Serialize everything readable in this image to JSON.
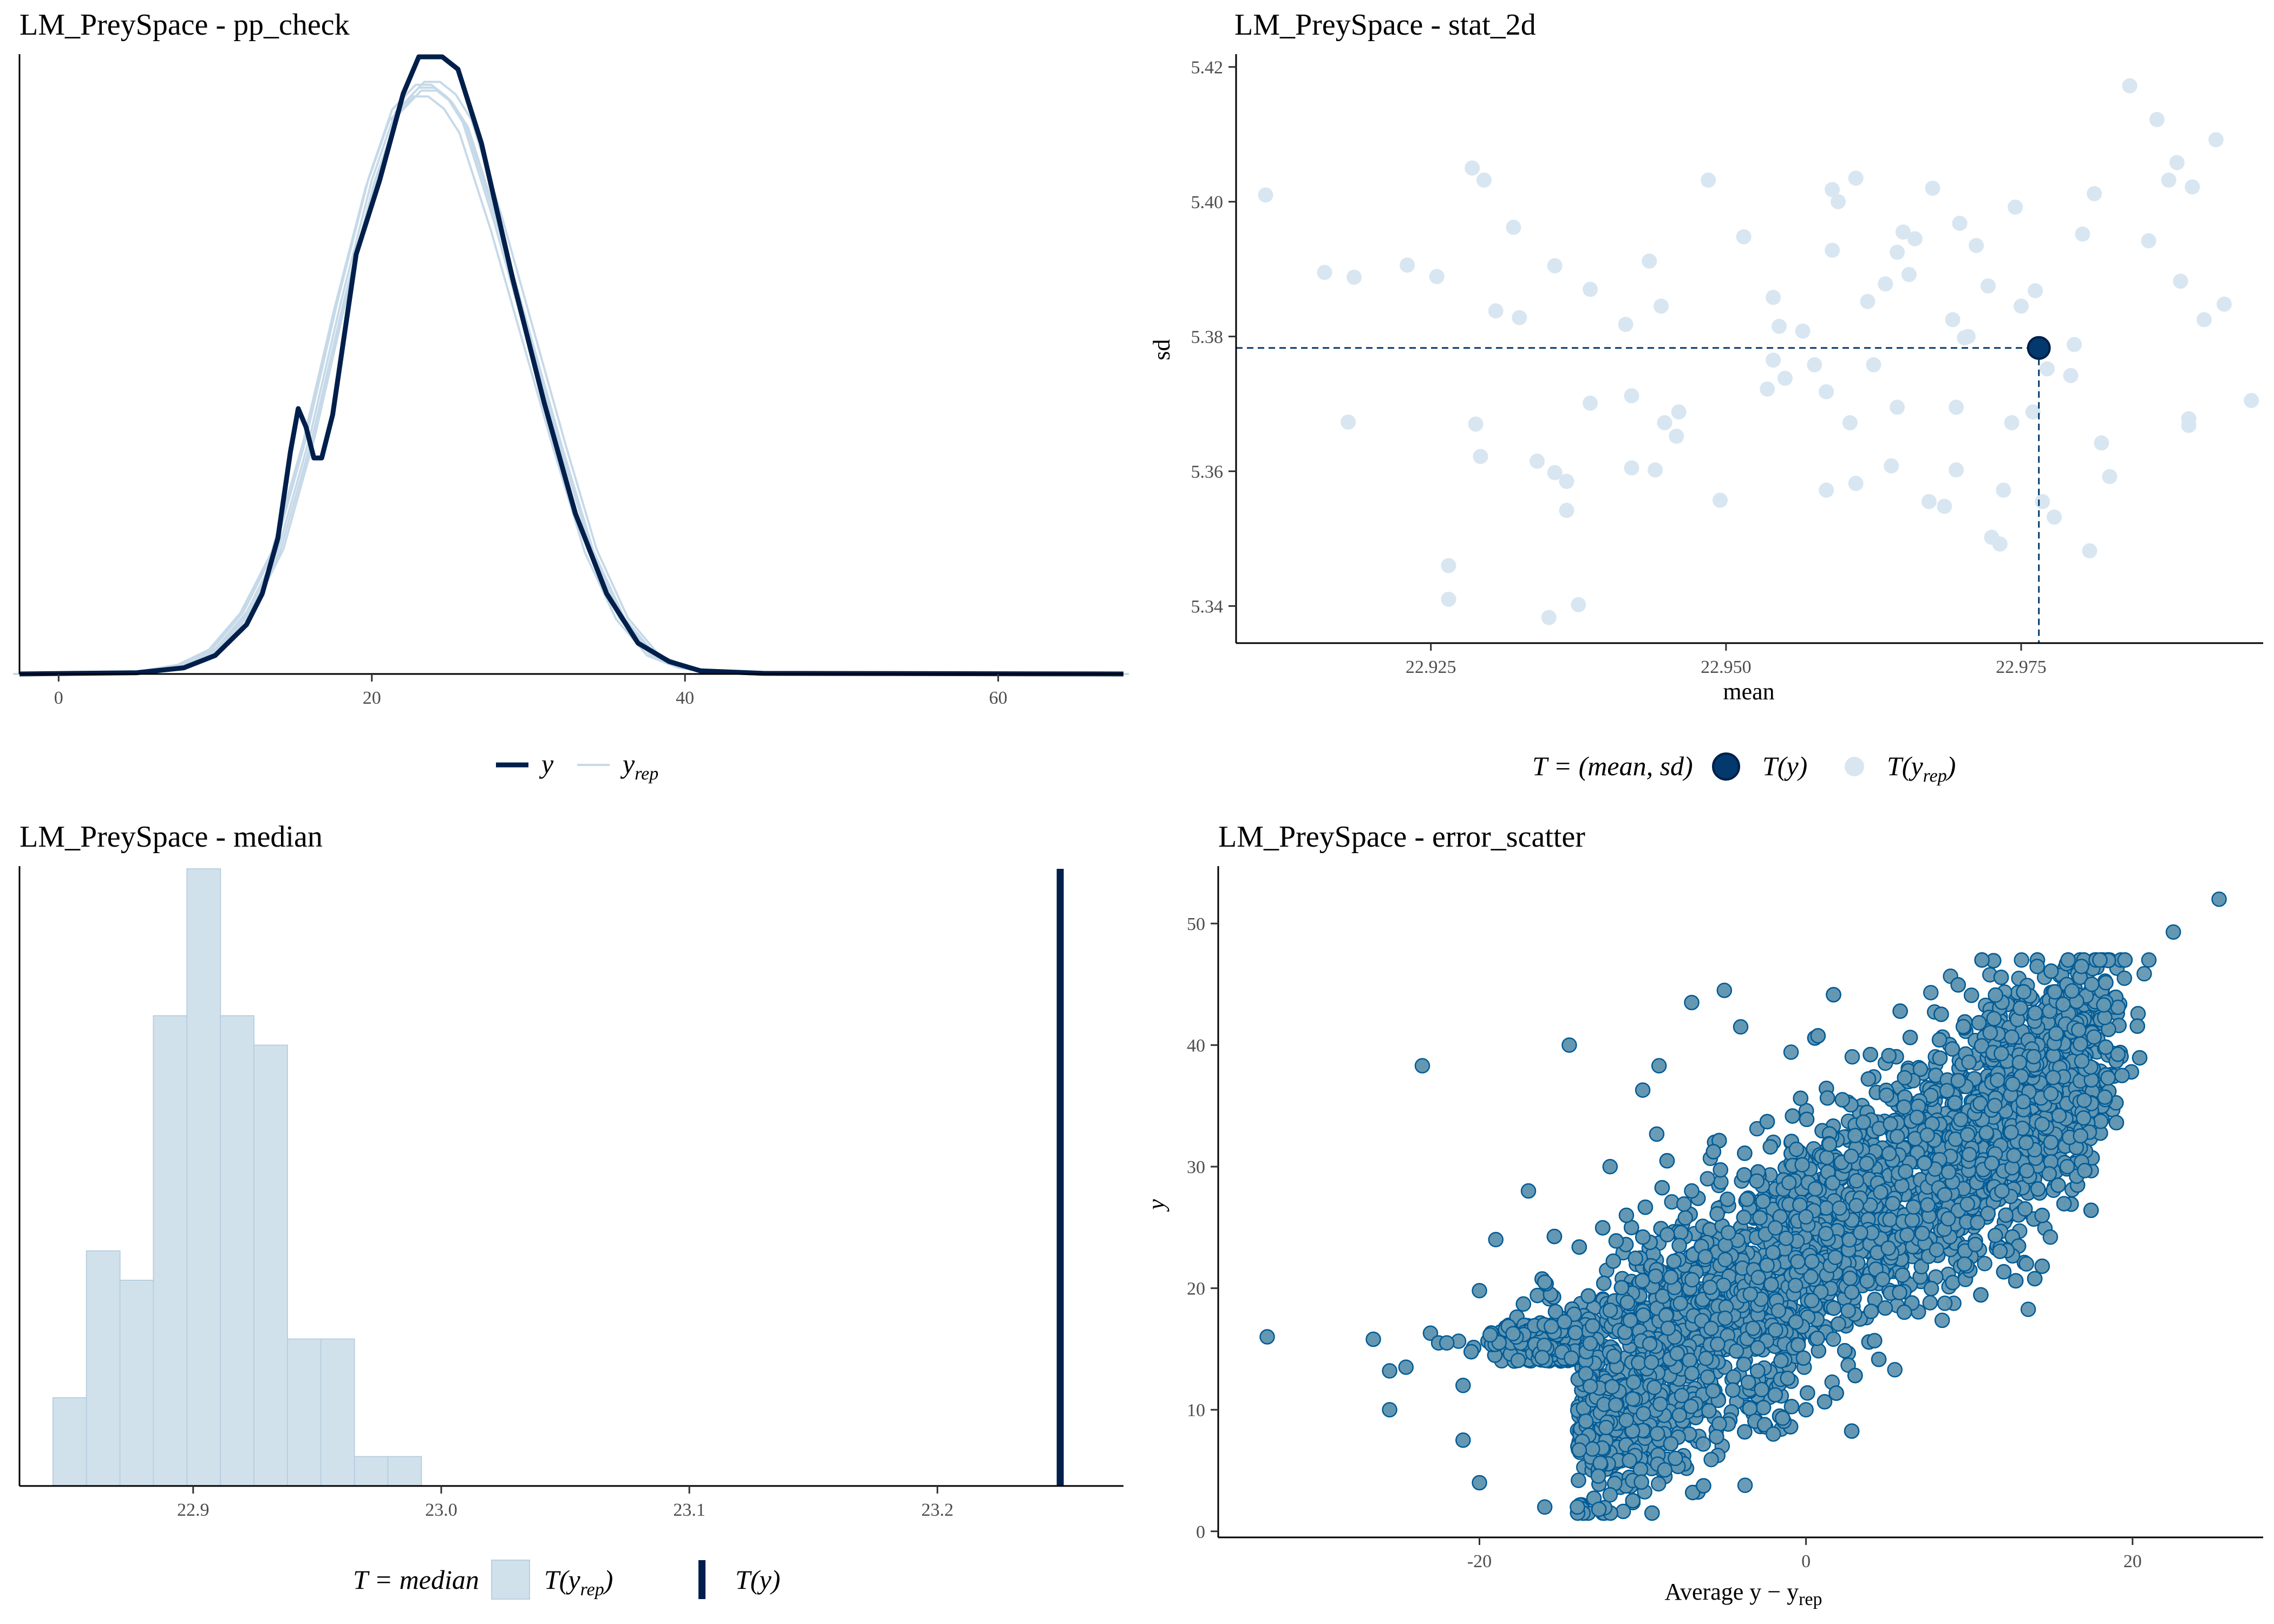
{
  "colors": {
    "y": "#011f4b",
    "yrep_line": "#c6d9e8",
    "yrep_fill": "#d1e1ec",
    "yrep_point": "#d8e6f1",
    "ty_point": "#03396c",
    "scatter_fill": "#6497b1",
    "scatter_edge": "#005b96",
    "axis": "#000000",
    "tick_text": "#4d4d4d"
  },
  "panels": {
    "pp_check": {
      "title": "LM_PreySpace - pp_check",
      "legend_y": "y",
      "legend_yrep": "y",
      "legend_yrep_sub": "rep"
    },
    "stat_2d": {
      "title": "LM_PreySpace - stat_2d",
      "legend_T": "T = (mean, sd)",
      "legend_ty": "T(y)",
      "legend_tyrep": "T(y",
      "legend_tyrep_sub": "rep",
      "legend_close": ")"
    },
    "median": {
      "title": "LM_PreySpace - median",
      "legend_T": "T = median",
      "legend_tyrep": "T(y",
      "legend_tyrep_sub": "rep",
      "legend_close": ")",
      "legend_ty": "T(y)"
    },
    "error_scatter": {
      "title": "LM_PreySpace - error_scatter"
    }
  },
  "chart_data": [
    {
      "id": "pp_check",
      "type": "line",
      "title": "LM_PreySpace - pp_check",
      "xlim": [
        -2.5,
        68
      ],
      "x_ticks": [
        0,
        20,
        40,
        60
      ],
      "x_tick_labels": [
        "0",
        "20",
        "40",
        "60"
      ],
      "y_axis_labels": false,
      "series": [
        {
          "name": "y",
          "x": [
            -2.5,
            5,
            8,
            10,
            12,
            13,
            14,
            14.8,
            15.3,
            15.8,
            16.3,
            16.8,
            17.5,
            19,
            20.5,
            22,
            23,
            23.8,
            24.5,
            25.5,
            27,
            29,
            31,
            33,
            35,
            37,
            39,
            41,
            45,
            68
          ],
          "y": [
            0,
            0.002,
            0.01,
            0.03,
            0.08,
            0.13,
            0.22,
            0.36,
            0.43,
            0.4,
            0.35,
            0.35,
            0.42,
            0.68,
            0.8,
            0.94,
            1.0,
            1.0,
            1.0,
            0.98,
            0.86,
            0.64,
            0.44,
            0.26,
            0.13,
            0.05,
            0.02,
            0.005,
            0.001,
            0
          ]
        },
        {
          "name": "y",
          "x": [
            -2.5,
            5,
            8,
            10,
            12,
            14,
            16,
            18,
            20,
            21.5,
            23,
            24,
            25,
            26,
            28,
            30,
            32,
            34,
            36,
            38,
            40,
            42,
            68
          ],
          "y": [
            0,
            0.002,
            0.015,
            0.04,
            0.1,
            0.2,
            0.38,
            0.6,
            0.8,
            0.91,
            0.95,
            0.95,
            0.93,
            0.89,
            0.73,
            0.55,
            0.37,
            0.2,
            0.09,
            0.03,
            0.01,
            0.003,
            0
          ]
        }
      ]
    },
    {
      "id": "stat_2d",
      "type": "scatter",
      "title": "LM_PreySpace - stat_2d",
      "xlabel": "mean",
      "ylabel": "sd",
      "xlim": [
        22.9085,
        22.9955
      ],
      "ylim": [
        5.3345,
        5.4215
      ],
      "x_ticks": [
        22.925,
        22.95,
        22.975
      ],
      "x_tick_labels": [
        "22.925",
        "22.950",
        "22.975"
      ],
      "y_ticks": [
        5.34,
        5.36,
        5.38,
        5.4,
        5.42
      ],
      "y_tick_labels": [
        "5.34",
        "5.36",
        "5.38",
        "5.40",
        "5.42"
      ],
      "T_y": {
        "mean": 22.9765,
        "sd": 5.3783
      },
      "T_yrep": [
        [
          22.911,
          5.401
        ],
        [
          22.916,
          5.3895
        ],
        [
          22.918,
          5.3673
        ],
        [
          22.9185,
          5.3888
        ],
        [
          22.923,
          5.3906
        ],
        [
          22.9255,
          5.3889
        ],
        [
          22.9265,
          5.346
        ],
        [
          22.9265,
          5.341
        ],
        [
          22.9285,
          5.405
        ],
        [
          22.9288,
          5.367
        ],
        [
          22.9292,
          5.3622
        ],
        [
          22.9295,
          5.4032
        ],
        [
          22.9305,
          5.3838
        ],
        [
          22.932,
          5.3962
        ],
        [
          22.9325,
          5.3828
        ],
        [
          22.934,
          5.3615
        ],
        [
          22.9355,
          5.3905
        ],
        [
          22.9355,
          5.3598
        ],
        [
          22.935,
          5.3383
        ],
        [
          22.9365,
          5.3585
        ],
        [
          22.9365,
          5.3542
        ],
        [
          22.9375,
          5.3402
        ],
        [
          22.9385,
          5.387
        ],
        [
          22.9385,
          5.3701
        ],
        [
          22.9415,
          5.3818
        ],
        [
          22.942,
          5.3605
        ],
        [
          22.942,
          5.3712
        ],
        [
          22.9435,
          5.3912
        ],
        [
          22.944,
          5.3602
        ],
        [
          22.9445,
          5.3845
        ],
        [
          22.9448,
          5.3672
        ],
        [
          22.9458,
          5.3652
        ],
        [
          22.946,
          5.3688
        ],
        [
          22.9485,
          5.4032
        ],
        [
          22.9495,
          5.3557
        ],
        [
          22.9515,
          5.3948
        ],
        [
          22.9535,
          5.3722
        ],
        [
          22.954,
          5.3858
        ],
        [
          22.954,
          5.3765
        ],
        [
          22.9545,
          5.3815
        ],
        [
          22.955,
          5.3738
        ],
        [
          22.9565,
          5.3808
        ],
        [
          22.9575,
          5.3758
        ],
        [
          22.9585,
          5.3718
        ],
        [
          22.9585,
          5.3572
        ],
        [
          22.959,
          5.3928
        ],
        [
          22.959,
          5.4018
        ],
        [
          22.9595,
          5.4
        ],
        [
          22.9605,
          5.3672
        ],
        [
          22.961,
          5.3582
        ],
        [
          22.961,
          5.4035
        ],
        [
          22.962,
          5.3852
        ],
        [
          22.9625,
          5.3758
        ],
        [
          22.9635,
          5.3878
        ],
        [
          22.964,
          5.3608
        ],
        [
          22.9645,
          5.3695
        ],
        [
          22.9645,
          5.3925
        ],
        [
          22.965,
          5.3955
        ],
        [
          22.9655,
          5.3892
        ],
        [
          22.966,
          5.3945
        ],
        [
          22.9672,
          5.3555
        ],
        [
          22.9675,
          5.402
        ],
        [
          22.9685,
          5.3548
        ],
        [
          22.9692,
          5.3825
        ],
        [
          22.9695,
          5.3602
        ],
        [
          22.9695,
          5.3695
        ],
        [
          22.9698,
          5.3968
        ],
        [
          22.9702,
          5.3798
        ],
        [
          22.9705,
          5.38
        ],
        [
          22.9712,
          5.3935
        ],
        [
          22.9722,
          5.3875
        ],
        [
          22.9725,
          5.3502
        ],
        [
          22.9732,
          5.3492
        ],
        [
          22.9735,
          5.3572
        ],
        [
          22.9742,
          5.3672
        ],
        [
          22.9745,
          5.3992
        ],
        [
          22.975,
          5.3845
        ],
        [
          22.976,
          5.3688
        ],
        [
          22.9762,
          5.3868
        ],
        [
          22.9768,
          5.3555
        ],
        [
          22.9772,
          5.3752
        ],
        [
          22.9778,
          5.3532
        ],
        [
          22.9792,
          5.3742
        ],
        [
          22.9795,
          5.3788
        ],
        [
          22.9802,
          5.3952
        ],
        [
          22.9808,
          5.3482
        ],
        [
          22.9812,
          5.4012
        ],
        [
          22.9818,
          5.3642
        ],
        [
          22.9825,
          5.3592
        ],
        [
          22.9842,
          5.4172
        ],
        [
          22.9858,
          5.3942
        ],
        [
          22.9865,
          5.4122
        ],
        [
          22.9875,
          5.4032
        ],
        [
          22.9882,
          5.4058
        ],
        [
          22.9885,
          5.3882
        ],
        [
          22.9892,
          5.3668
        ],
        [
          22.9892,
          5.3678
        ],
        [
          22.9895,
          5.4022
        ],
        [
          22.9905,
          5.3825
        ],
        [
          22.9915,
          5.4092
        ],
        [
          22.9922,
          5.3848
        ],
        [
          22.9945,
          5.3705
        ]
      ]
    },
    {
      "id": "median",
      "type": "bar",
      "title": "LM_PreySpace - median",
      "xlim": [
        22.83,
        23.275
      ],
      "x_ticks": [
        22.9,
        23.0,
        23.1,
        23.2
      ],
      "x_tick_labels": [
        "22.9",
        "23.0",
        "23.1",
        "23.2"
      ],
      "y_axis_labels": false,
      "bin_edges": [
        22.8435,
        22.857,
        22.8705,
        22.884,
        22.8975,
        22.911,
        22.9245,
        22.938,
        22.9515,
        22.965,
        22.9785,
        22.992
      ],
      "counts": [
        3,
        8,
        7,
        16,
        21,
        16,
        15,
        5,
        5,
        1,
        1
      ],
      "observed": 23.2495
    },
    {
      "id": "error_scatter",
      "type": "scatter",
      "title": "LM_PreySpace - error_scatter",
      "xlabel": "Average y − y",
      "xlabel_sub": "rep",
      "ylabel": "y",
      "xlim": [
        -36,
        28
      ],
      "ylim": [
        -0.5,
        54.5
      ],
      "x_ticks": [
        -20,
        0,
        20
      ],
      "x_tick_labels": [
        "-20",
        "0",
        "20"
      ],
      "y_ticks": [
        0,
        10,
        20,
        30,
        40,
        50
      ],
      "y_tick_labels": [
        "0",
        "10",
        "20",
        "30",
        "40",
        "50"
      ],
      "outliers": [
        [
          -33,
          16
        ],
        [
          -26.5,
          15.8
        ],
        [
          -25.5,
          13.2
        ],
        [
          -24.5,
          13.5
        ],
        [
          -23.5,
          38.3
        ],
        [
          -23,
          16.3
        ],
        [
          -22.5,
          15.5
        ],
        [
          -25.5,
          10
        ],
        [
          -21,
          12
        ],
        [
          -21,
          7.5
        ],
        [
          -20,
          4
        ],
        [
          -22,
          15.5
        ],
        [
          -20,
          19.8
        ],
        [
          -19,
          24
        ],
        [
          -17,
          28
        ],
        [
          -16,
          20.5
        ],
        [
          -14.5,
          40
        ],
        [
          -12,
          30
        ],
        [
          -10,
          36.3
        ],
        [
          -9,
          38.3
        ],
        [
          -7,
          43.5
        ],
        [
          -5,
          44.5
        ],
        [
          -4,
          41.5
        ],
        [
          -7,
          28
        ],
        [
          -11,
          26
        ],
        [
          22.5,
          49.3
        ],
        [
          25.3,
          52
        ],
        [
          19.5,
          45.5
        ],
        [
          21,
          47
        ],
        [
          18,
          47
        ],
        [
          17.5,
          45
        ],
        [
          18.5,
          37.3
        ],
        [
          15,
          36
        ],
        [
          16,
          30
        ],
        [
          15,
          32
        ],
        [
          17,
          34
        ],
        [
          13.5,
          22
        ],
        [
          12,
          28
        ],
        [
          10,
          31
        ],
        [
          -14,
          2
        ],
        [
          -16,
          2
        ],
        [
          -12,
          3
        ],
        [
          -8,
          6
        ],
        [
          -2,
          8
        ],
        [
          0,
          10
        ]
      ],
      "band": {
        "intercept": 22.9,
        "slope": 0.93,
        "x_min": -17.5,
        "x_max": 18,
        "spread_sd": 5.2,
        "n_points": 7000
      }
    }
  ]
}
